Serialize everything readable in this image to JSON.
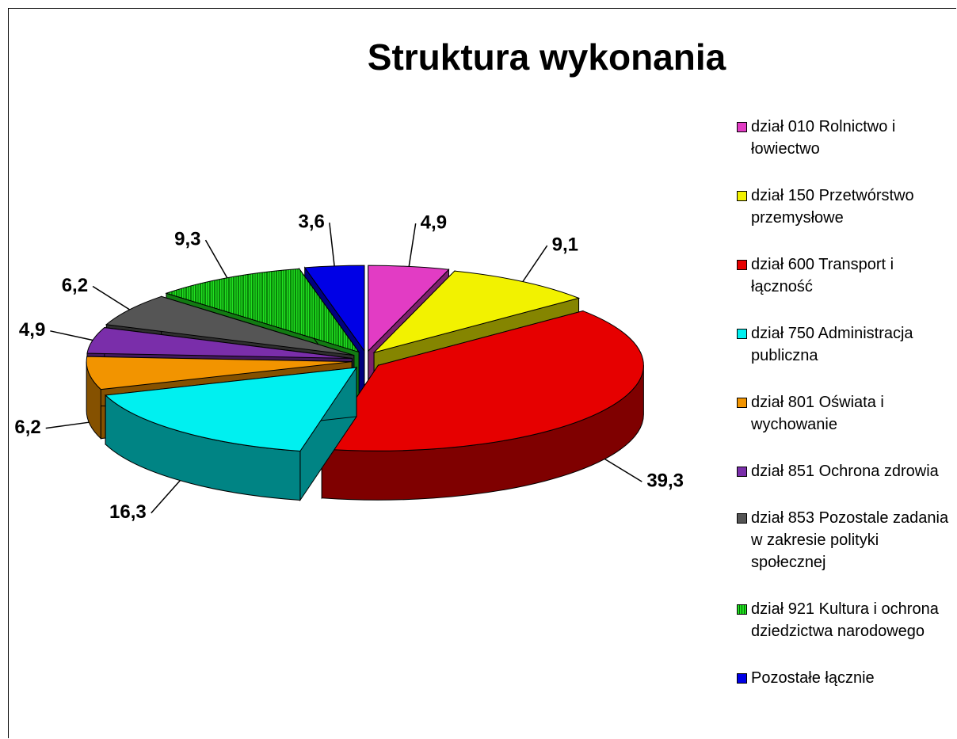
{
  "chart_data": {
    "type": "pie3d",
    "title": "Struktura wykonania",
    "categories": [
      "dział 010 Rolnictwo i łowiectwo",
      "dział 150 Przetwórstwo przemysłowe",
      "dział 600 Transport i łączność",
      "dział 750 Administracja publiczna",
      "dział 801 Oświata i wychowanie",
      "dział 851 Ochrona zdrowia",
      "dział 853 Pozostale zadania w zakresie polityki społecznej",
      "dział 921 Kultura i ochrona dziedzictwa narodowego",
      "Pozostałe łącznie"
    ],
    "values": [
      4.9,
      9.1,
      39.3,
      16.3,
      6.2,
      4.9,
      6.2,
      9.3,
      3.6
    ],
    "value_labels": [
      "4,9",
      "9,1",
      "39,3",
      "16,3",
      "6,2",
      "4,9",
      "6,2",
      "9,3",
      "3,6"
    ],
    "colors": [
      "#e23cc4",
      "#f2f200",
      "#e60000",
      "#00f0f0",
      "#f29400",
      "#7a2eaa",
      "#555555",
      "#22e022",
      "#0000e6"
    ],
    "hatched_slices": [
      7
    ],
    "legend": "right"
  }
}
